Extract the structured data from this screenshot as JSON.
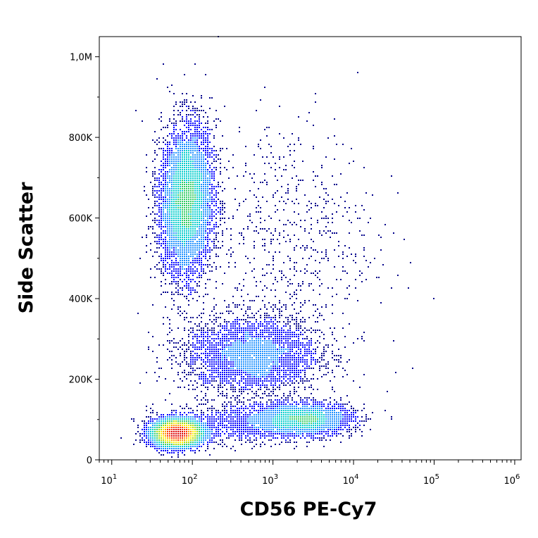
{
  "chart_data": {
    "type": "scatter",
    "style": "density-dot-plot",
    "xlabel": "CD56 PE-Cy7",
    "ylabel": "Side Scatter",
    "x_scale": "log",
    "xlim": [
      7,
      1200000
    ],
    "ylim": [
      0,
      1050000
    ],
    "x_ticks": [
      {
        "value": 10,
        "base": "10",
        "exp": "1"
      },
      {
        "value": 100,
        "base": "10",
        "exp": "2"
      },
      {
        "value": 1000,
        "base": "10",
        "exp": "3"
      },
      {
        "value": 10000,
        "base": "10",
        "exp": "4"
      },
      {
        "value": 100000,
        "base": "10",
        "exp": "5"
      },
      {
        "value": 1000000,
        "base": "10",
        "exp": "6"
      }
    ],
    "y_ticks": [
      {
        "value": 0,
        "label": "0"
      },
      {
        "value": 200000,
        "label": "200K"
      },
      {
        "value": 400000,
        "label": "400K"
      },
      {
        "value": 600000,
        "label": "600K"
      },
      {
        "value": 800000,
        "label": "800K"
      },
      {
        "value": 1000000,
        "label": "1,0M"
      }
    ],
    "grid": false,
    "density_colors": [
      "#00008b",
      "#0000ff",
      "#1e90ff",
      "#00cccc",
      "#33cc66",
      "#aadd00",
      "#ffee00",
      "#ff9900",
      "#ff3300",
      "#dd0000"
    ],
    "populations": [
      {
        "x": 65,
        "y": 65000,
        "count": 5000
      },
      {
        "x": 85,
        "y": 640000,
        "count": 7000
      },
      {
        "x": 550,
        "y": 260000,
        "count": 3500
      },
      {
        "x": 2500,
        "y": 100000,
        "count": 2500
      },
      {
        "x": 400,
        "y": 90000,
        "count": 1200
      },
      {
        "x": 1500,
        "y": 550000,
        "count": 700
      }
    ]
  }
}
